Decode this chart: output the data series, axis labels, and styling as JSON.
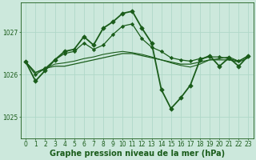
{
  "background_color": "#cce8dc",
  "plot_bg_color": "#cce8dc",
  "grid_color": "#b0d8c8",
  "xlabel": "Graphe pression niveau de la mer (hPa)",
  "xlim": [
    -0.5,
    23.5
  ],
  "ylim": [
    1024.5,
    1027.7
  ],
  "yticks": [
    1025,
    1026,
    1027
  ],
  "xticks": [
    0,
    1,
    2,
    3,
    4,
    5,
    6,
    7,
    8,
    9,
    10,
    11,
    12,
    13,
    14,
    15,
    16,
    17,
    18,
    19,
    20,
    21,
    22,
    23
  ],
  "series": [
    {
      "x": [
        0,
        1,
        2,
        3,
        4,
        5,
        6,
        7,
        8,
        9,
        10,
        11,
        12,
        13,
        14,
        15,
        16,
        17,
        18,
        19,
        20,
        21,
        22,
        23
      ],
      "y": [
        1026.3,
        1026.05,
        1026.15,
        1026.2,
        1026.2,
        1026.25,
        1026.3,
        1026.35,
        1026.4,
        1026.45,
        1026.5,
        1026.5,
        1026.45,
        1026.4,
        1026.35,
        1026.3,
        1026.25,
        1026.25,
        1026.3,
        1026.35,
        1026.35,
        1026.35,
        1026.3,
        1026.4
      ],
      "color": "#1a5c1a",
      "linewidth": 0.9,
      "marker": null
    },
    {
      "x": [
        0,
        1,
        2,
        3,
        4,
        5,
        6,
        7,
        8,
        9,
        10,
        11,
        12,
        13,
        14,
        15,
        16,
        17,
        18,
        19,
        20,
        21,
        22,
        23
      ],
      "y": [
        1026.3,
        1026.05,
        1026.15,
        1026.25,
        1026.28,
        1026.32,
        1026.38,
        1026.42,
        1026.48,
        1026.52,
        1026.55,
        1026.52,
        1026.48,
        1026.42,
        1026.35,
        1026.28,
        1026.22,
        1026.18,
        1026.25,
        1026.35,
        1026.38,
        1026.42,
        1026.32,
        1026.45
      ],
      "color": "#1a5c1a",
      "linewidth": 0.8,
      "marker": null
    },
    {
      "x": [
        0,
        1,
        2,
        3,
        4,
        5,
        6,
        7,
        8,
        9,
        10,
        11,
        12,
        13,
        14,
        15,
        16,
        17,
        18,
        19,
        20,
        21,
        22,
        23
      ],
      "y": [
        1026.3,
        1026.0,
        1026.15,
        1026.35,
        1026.5,
        1026.55,
        1026.75,
        1026.6,
        1026.7,
        1026.95,
        1027.15,
        1027.2,
        1026.85,
        1026.65,
        1026.55,
        1026.4,
        1026.35,
        1026.32,
        1026.38,
        1026.42,
        1026.42,
        1026.38,
        1026.32,
        1026.45
      ],
      "color": "#1a5c1a",
      "linewidth": 0.9,
      "marker": "D",
      "markersize": 2.2,
      "markerfacecolor": "#1a5c1a"
    },
    {
      "x": [
        0,
        1,
        2,
        3,
        4,
        5,
        6,
        7,
        8,
        9,
        10,
        11,
        12,
        13,
        14,
        15,
        16,
        17,
        18,
        19,
        20,
        21,
        22,
        23
      ],
      "y": [
        1026.3,
        1025.85,
        1026.1,
        1026.35,
        1026.55,
        1026.6,
        1026.9,
        1026.7,
        1027.1,
        1027.25,
        1027.45,
        1027.5,
        1027.1,
        1026.75,
        1025.65,
        1025.2,
        1025.45,
        1025.75,
        1026.35,
        1026.45,
        1026.2,
        1026.4,
        1026.2,
        1026.45
      ],
      "color": "#1a5c1a",
      "linewidth": 1.3,
      "marker": "D",
      "markersize": 2.8,
      "markerfacecolor": "#1a5c1a"
    }
  ],
  "xlabel_fontsize": 7,
  "xlabel_fontweight": "bold",
  "tick_fontsize": 5.5,
  "tick_color": "#1a5c1a",
  "xlabel_color": "#1a5c1a",
  "spine_color": "#1a5c1a"
}
